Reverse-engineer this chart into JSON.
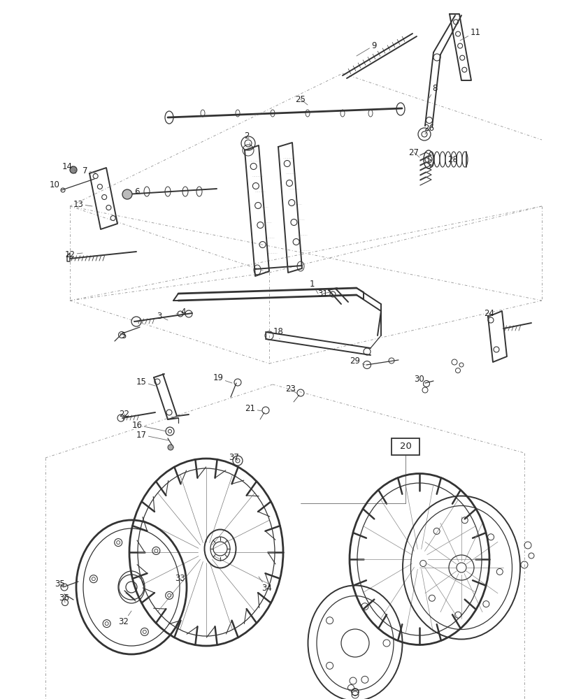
{
  "bg_color": "#ffffff",
  "line_color": "#666666",
  "dark_color": "#333333",
  "label_color": "#222222",
  "figsize": [
    8.12,
    10.0
  ],
  "dpi": 100,
  "dash_color": "#999999",
  "spring_color": "#444444"
}
